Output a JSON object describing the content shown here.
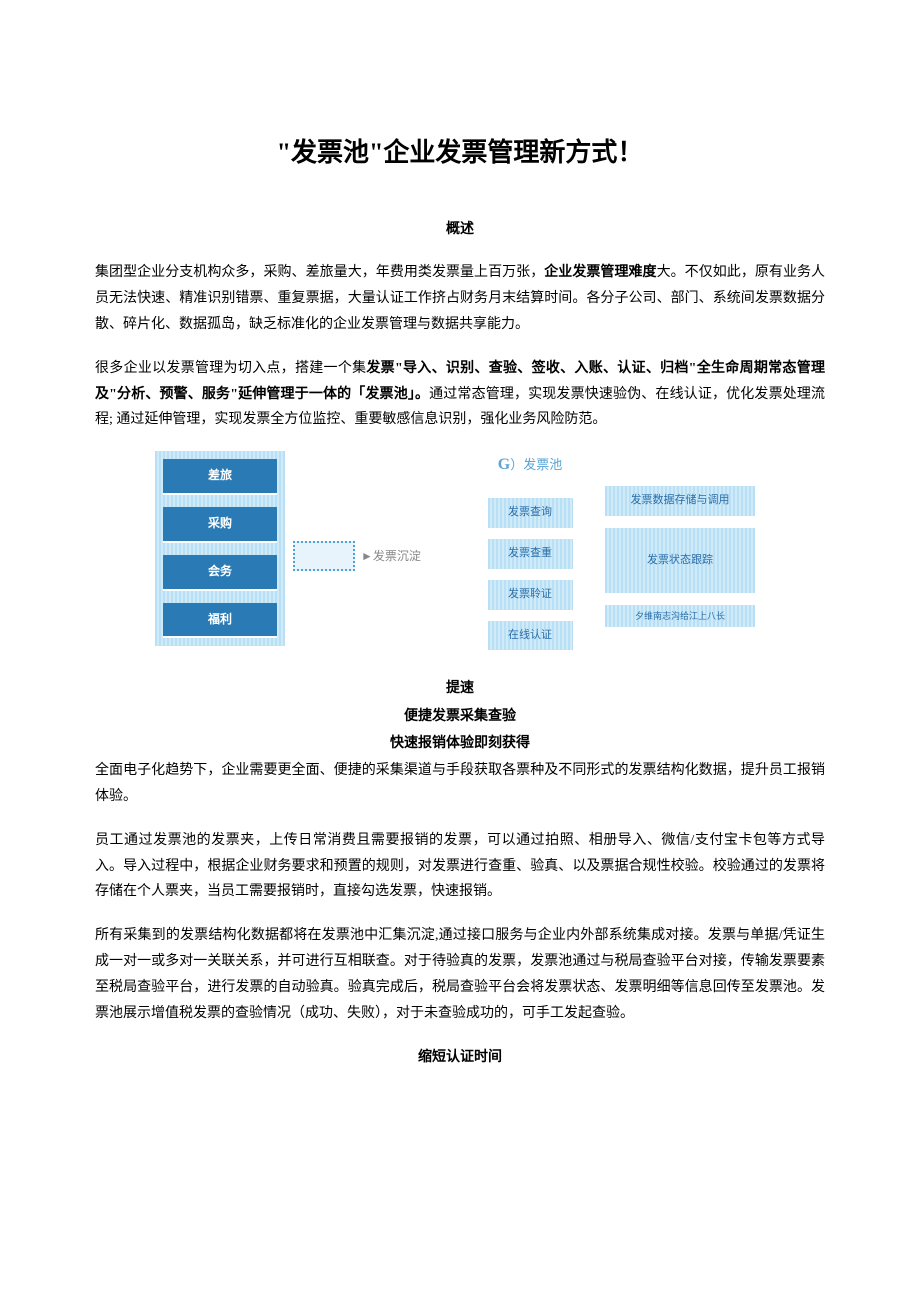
{
  "title": "\"发票池\"企业发票管理新方式！",
  "sections": {
    "overview": {
      "heading": "概述",
      "para1_a": "集团型企业分支机构众多，采购、差旅量大，年费用类发票量上百万张，",
      "para1_bold": "企业发票管理难度",
      "para1_b": "大。不仅如此，原有业务人员无法快速、精准识别错票、重复票据，大量认证工作挤占财务月末结算时间。各分子公司、部门、系统间发票数据分散、碎片化、数据孤岛，缺乏标准化的企业发票管理与数据共享能力。",
      "para2_a": "很多企业以发票管理为切入点，搭建一个集",
      "para2_bold1": "发票\"导入、识别、查验、签收、入账、认证、归档\"全生命周期常态管理及\"分析、预警、服务\"延伸管理于一体的「发票池」。",
      "para2_b": "通过常态管理，实现发票快速验伪、在线认证，优化发票处理流程; 通过延伸管理，实现发票全方位监控、重要敏感信息识别，强化业务风险防范。"
    },
    "speedup": {
      "heading": "提速",
      "sub1": "便捷发票采集查验",
      "sub2": "快速报销体验即刻获得",
      "para1": "全面电子化趋势下，企业需要更全面、便捷的采集渠道与手段获取各票种及不同形式的发票结构化数据，提升员工报销体验。",
      "para2": "员工通过发票池的发票夹，上传日常消费且需要报销的发票，可以通过拍照、相册导入、微信/支付宝卡包等方式导入。导入过程中，根据企业财务要求和预置的规则，对发票进行查重、验真、以及票据合规性校验。校验通过的发票将存储在个人票夹，当员工需要报销时，直接勾选发票，快速报销。",
      "para3": "所有采集到的发票结构化数据都将在发票池中汇集沉淀,通过接口服务与企业内外部系统集成对接。发票与单据/凭证生成一对一或多对一关联关系，并可进行互相联查。对于待验真的发票，发票池通过与税局查验平台对接，传输发票要素至税局查验平台，进行发票的自动验真。验真完成后，税局查验平台会将发票状态、发票明细等信息回传至发票池。发票池展示增值税发票的查验情况（成功、失败），对于未查验成功的，可手工发起查验。"
    },
    "shorten": {
      "heading": "缩短认证时间"
    }
  },
  "diagram": {
    "left_buttons": [
      "差旅",
      "采购",
      "会务",
      "福利"
    ],
    "arrow_label": "►发票沉淀",
    "pool_header_g": "G",
    "pool_header_text": "）发票池",
    "mid_items": [
      "发票查询",
      "发票查重",
      "发票聆证",
      "在线认证"
    ],
    "right_items": [
      "发票数据存储与调用",
      "发票状态跟踪",
      "夕维南志沟给江上八长"
    ],
    "colors": {
      "dark_blue": "#2a7bb5",
      "light_blue": "#b8dff5",
      "text_blue": "#2a6ea8",
      "header_blue": "#5aa5d6",
      "gray": "#888888"
    }
  }
}
